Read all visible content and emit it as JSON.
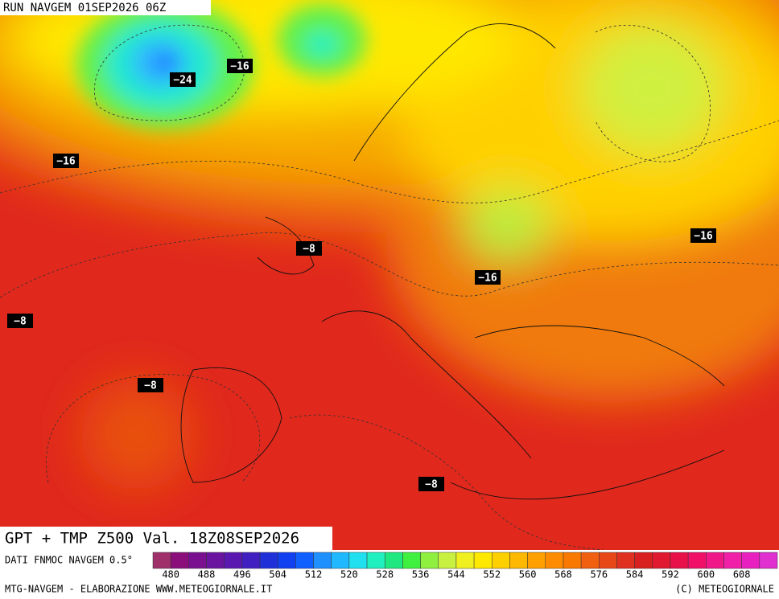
{
  "header": {
    "run": "RUN NAVGEM 01SEP2026 06Z"
  },
  "map": {
    "contour_labels": [
      "−16",
      "−24",
      "−16",
      "−8",
      "−16",
      "−16",
      "−8",
      "−8",
      "−8"
    ]
  },
  "footer": {
    "title": "GPT + TMP Z500 Val. 18Z08SEP2026",
    "source": "DATI FNMOC NAVGEM 0.5°",
    "ticks": [
      480,
      488,
      496,
      504,
      512,
      520,
      528,
      536,
      544,
      552,
      560,
      568,
      576,
      584,
      592,
      600,
      608
    ],
    "colors": [
      "#a0306a",
      "#8a0f7a",
      "#7a1090",
      "#6a14a0",
      "#5a18b0",
      "#4020c0",
      "#2030d8",
      "#1040f0",
      "#1060ff",
      "#2090ff",
      "#20b8ff",
      "#20e0f0",
      "#20f0c0",
      "#20e880",
      "#40f040",
      "#90f040",
      "#c8f040",
      "#f0f020",
      "#ffe800",
      "#ffd000",
      "#ffb800",
      "#ffa000",
      "#ff8c00",
      "#f87800",
      "#f06010",
      "#e84818",
      "#e03020",
      "#d82020",
      "#e01830",
      "#e81048",
      "#f01068",
      "#f01888",
      "#f020a8",
      "#e820c0",
      "#e030d0"
    ],
    "credit_left": "MTG-NAVGEM - ELABORAZIONE WWW.METEOGIORNALE.IT",
    "credit_right": "(C) METEOGIORNALE"
  }
}
